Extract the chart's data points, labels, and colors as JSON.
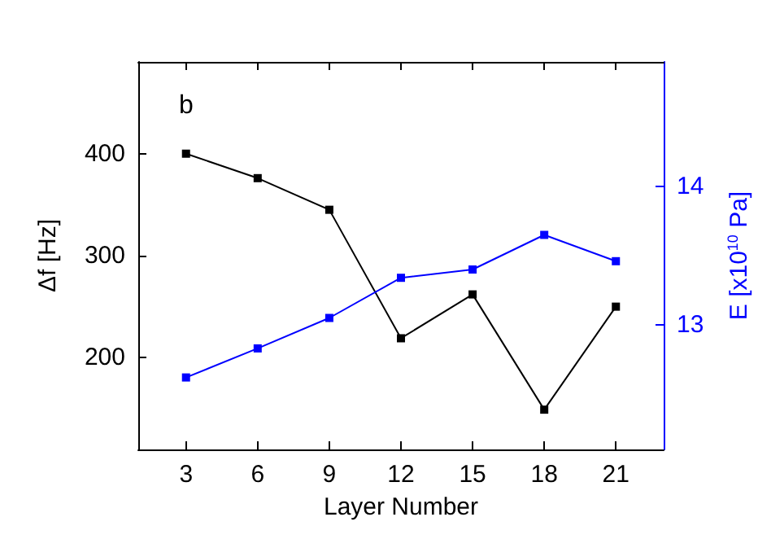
{
  "chart_data": {
    "type": "line",
    "xlabel": "Layer Number",
    "ylabel": "Δf [Hz]",
    "y2label": "E [x10$^{10}$ Pa]",
    "annotations": [
      "b"
    ],
    "x": [
      3,
      6,
      9,
      12,
      15,
      18,
      21
    ],
    "xlim": [
      1,
      23
    ],
    "xticks": [
      3,
      6,
      9,
      12,
      15,
      18,
      21
    ],
    "ylim": [
      110,
      490
    ],
    "yticks": [
      200,
      300,
      400
    ],
    "y2lim": [
      12.1,
      14.9
    ],
    "y2ticks": [
      13,
      14
    ],
    "marker": "square",
    "grid": false,
    "series": [
      {
        "color": "#000000",
        "values": [
          400,
          376,
          345,
          219,
          262,
          149,
          250
        ]
      },
      {
        "color": "#0000ff",
        "axis": "y2",
        "values": [
          12.62,
          12.83,
          13.05,
          13.34,
          13.4,
          13.65,
          13.46
        ]
      }
    ]
  }
}
